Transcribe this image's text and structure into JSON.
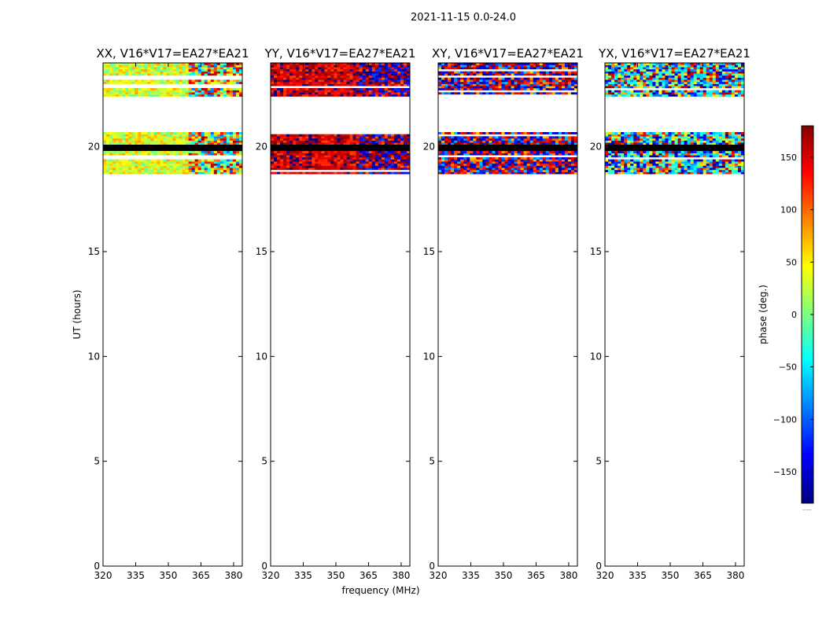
{
  "suptitle": "2021-11-15 0.0-24.0",
  "xlabel": "frequency (MHz)",
  "ylabel": "UT (hours)",
  "colorbar": {
    "label": "phase (deg.)",
    "range": [
      -180,
      180
    ],
    "ticks": [
      150,
      100,
      50,
      0,
      -50,
      -100,
      -150
    ],
    "tick_labels": [
      "150",
      "100",
      "50",
      "0",
      "−50",
      "−100",
      "−150"
    ],
    "colormap": "jet",
    "footer": "......"
  },
  "chart_data": [
    {
      "type": "heatmap",
      "title": "XX, V16*V17=EA27*EA21",
      "x_range": [
        320,
        384
      ],
      "y_range": [
        0,
        24
      ],
      "x_ticks": [
        320,
        335,
        350,
        365,
        380
      ],
      "y_ticks": [
        0,
        5,
        10,
        15,
        20
      ],
      "phase_profile": "mostly green-yellow (~0 to 60 deg) at low frequency, mixed toward high frequency",
      "data_blocks_ut_hours": [
        [
          18.7,
          20.7
        ],
        [
          22.4,
          24.0
        ]
      ],
      "flagged_black_bands_ut_hours": [
        [
          19.8,
          20.1
        ]
      ],
      "phase_center_deg": 35
    },
    {
      "type": "heatmap",
      "title": "YY, V16*V17=EA27*EA21",
      "x_range": [
        320,
        384
      ],
      "y_range": [
        0,
        24
      ],
      "x_ticks": [
        320,
        335,
        350,
        365,
        380
      ],
      "y_ticks": [
        0,
        5,
        10,
        15,
        20
      ],
      "phase_profile": "red (~120 to 180 deg) at low frequency, wrapping to blue above ~360 MHz",
      "data_blocks_ut_hours": [
        [
          18.7,
          20.7
        ],
        [
          22.4,
          24.0
        ]
      ],
      "flagged_black_bands_ut_hours": [
        [
          19.8,
          20.1
        ]
      ],
      "phase_center_deg": 150
    },
    {
      "type": "heatmap",
      "title": "XY, V16*V17=EA27*EA21",
      "x_range": [
        320,
        384
      ],
      "y_range": [
        0,
        24
      ],
      "x_ticks": [
        320,
        335,
        350,
        365,
        380
      ],
      "y_ticks": [
        0,
        5,
        10,
        15,
        20
      ],
      "phase_profile": "noisy, full phase range, red/blue mix",
      "data_blocks_ut_hours": [
        [
          18.7,
          20.7
        ],
        [
          22.4,
          24.0
        ]
      ],
      "flagged_black_bands_ut_hours": [
        [
          19.8,
          20.1
        ]
      ],
      "phase_center_deg": null
    },
    {
      "type": "heatmap",
      "title": "YX, V16*V17=EA27*EA21",
      "x_range": [
        320,
        384
      ],
      "y_range": [
        0,
        24
      ],
      "x_ticks": [
        320,
        335,
        350,
        365,
        380
      ],
      "y_ticks": [
        0,
        5,
        10,
        15,
        20
      ],
      "phase_profile": "noisy, full phase range, mostly blue/green",
      "data_blocks_ut_hours": [
        [
          18.7,
          20.7
        ],
        [
          22.4,
          24.0
        ]
      ],
      "flagged_black_bands_ut_hours": [
        [
          19.8,
          20.1
        ]
      ],
      "phase_center_deg": null
    }
  ]
}
